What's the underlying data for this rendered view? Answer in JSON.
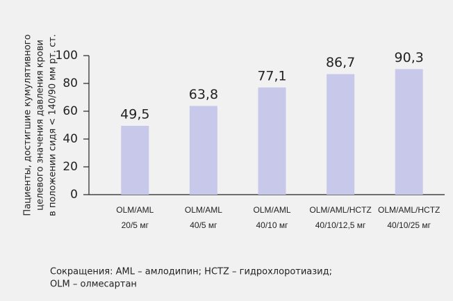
{
  "chart_data": {
    "type": "bar",
    "ylabel": [
      "Пациенты, достигшие кумулятивного",
      "целевого значения давления крови",
      "в положении сидя  < 140/90 мм рт. ст."
    ],
    "categories": [
      [
        "OLM/AML",
        "20/5 мг"
      ],
      [
        "OLM/AML",
        "40/5 мг"
      ],
      [
        "OLM/AML",
        "40/10 мг"
      ],
      [
        "OLM/AML/HCTZ",
        "40/10/12,5 мг"
      ],
      [
        "OLM/AML/HCTZ",
        "40/10/25 мг"
      ]
    ],
    "values": [
      49.5,
      63.8,
      77.1,
      86.7,
      90.3
    ],
    "value_labels": [
      "49,5",
      "63,8",
      "77,1",
      "86,7",
      "90,3"
    ],
    "color": "#c8c8ea",
    "ylim": [
      0,
      100
    ],
    "yticks": [
      0,
      20,
      40,
      60,
      80,
      100
    ],
    "note": [
      "Сокращения: AML – амлодипин; HCTZ – гидрохлоротиазид;",
      "OLM – олмесартан"
    ]
  }
}
